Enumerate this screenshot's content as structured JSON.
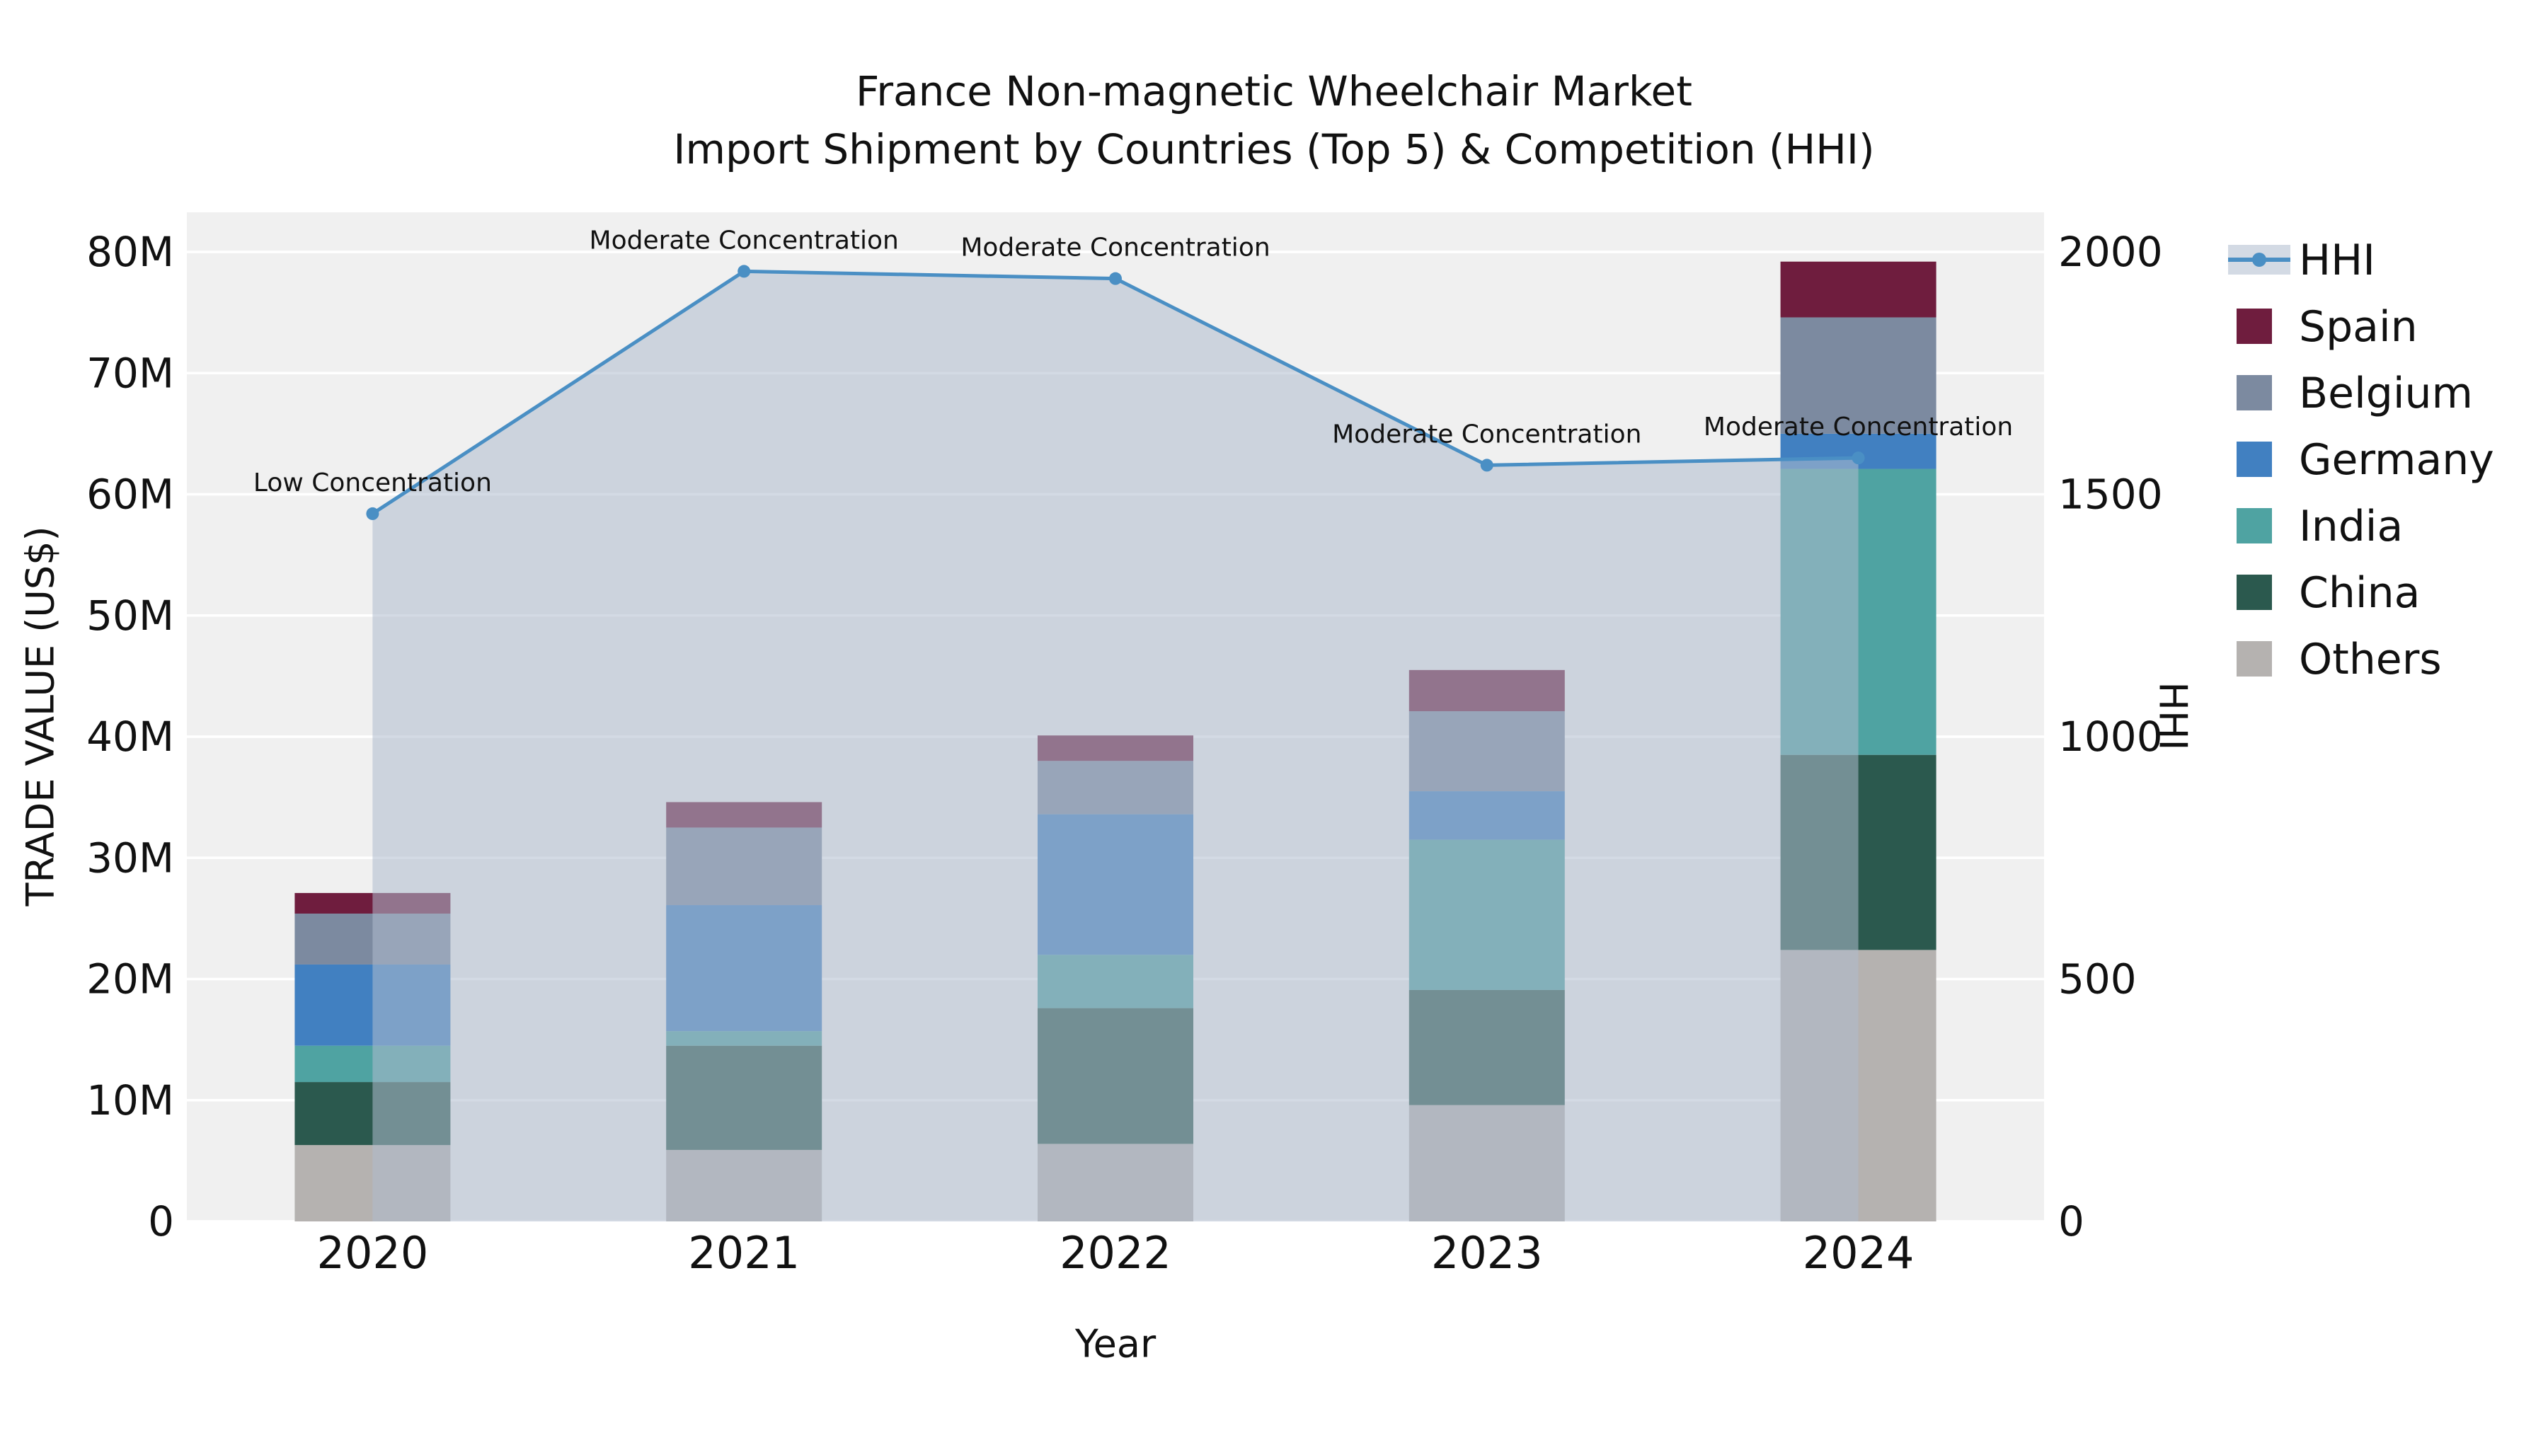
{
  "title": {
    "line1": "France Non-magnetic Wheelchair Market",
    "line2": "Import Shipment by Countries (Top 5) & Competition (HHI)"
  },
  "axes": {
    "y_left_title": "TRADE VALUE (US$)",
    "y_right_title": "HHI",
    "x_title": "Year"
  },
  "chart_data": {
    "type": "combo: stacked bar (trade value, left axis) + line with markers and area fill (HHI, right axis)",
    "categories": [
      "2020",
      "2021",
      "2022",
      "2023",
      "2024"
    ],
    "stack_order_bottom_to_top": [
      "Others",
      "China",
      "India",
      "Germany",
      "Belgium",
      "Spain"
    ],
    "series": [
      {
        "name": "Others",
        "color": "#b5b2b0",
        "values": [
          6.3,
          5.9,
          6.4,
          9.6,
          22.4
        ]
      },
      {
        "name": "China",
        "color": "#2b594e",
        "values": [
          5.2,
          8.6,
          11.2,
          9.5,
          16.1
        ]
      },
      {
        "name": "India",
        "color": "#4fa3a2",
        "values": [
          3.0,
          1.2,
          4.4,
          12.4,
          23.6
        ]
      },
      {
        "name": "Germany",
        "color": "#4180c1",
        "values": [
          6.7,
          10.4,
          11.6,
          4.0,
          2.9
        ]
      },
      {
        "name": "Belgium",
        "color": "#7c8aa0",
        "values": [
          4.2,
          6.4,
          4.4,
          6.6,
          9.6
        ]
      },
      {
        "name": "Spain",
        "color": "#6f1d3e",
        "values": [
          1.7,
          2.1,
          2.1,
          3.4,
          4.6
        ]
      }
    ],
    "bar_totals_millions": [
      27.1,
      34.6,
      40.1,
      45.5,
      79.2
    ],
    "line_series": {
      "name": "HHI",
      "color": "#4a8fc4",
      "fill_color": "#aebccd",
      "values": [
        1460,
        1960,
        1945,
        1560,
        1575
      ]
    },
    "annotations": [
      "Low Concentration",
      "Moderate Concentration",
      "Moderate Concentration",
      "Moderate Concentration",
      "Moderate Concentration"
    ],
    "y_left": {
      "label": "TRADE VALUE (US$)",
      "ticks": [
        "0",
        "10M",
        "20M",
        "30M",
        "40M",
        "50M",
        "60M",
        "70M",
        "80M"
      ],
      "tick_values": [
        0,
        10,
        20,
        30,
        40,
        50,
        60,
        70,
        80
      ],
      "max": 80
    },
    "y_right": {
      "label": "HHI",
      "ticks": [
        "0",
        "500",
        "1000",
        "1500",
        "2000"
      ],
      "tick_values": [
        0,
        500,
        1000,
        1500,
        2000
      ],
      "max": 2000
    },
    "x_label": "Year",
    "legend": [
      {
        "label": "HHI",
        "symbol": "line",
        "color": "#4a8fc4"
      },
      {
        "label": "Spain",
        "symbol": "square",
        "color": "#6f1d3e"
      },
      {
        "label": "Belgium",
        "symbol": "square",
        "color": "#7c8aa0"
      },
      {
        "label": "Germany",
        "symbol": "square",
        "color": "#4180c1"
      },
      {
        "label": "India",
        "symbol": "square",
        "color": "#4fa3a2"
      },
      {
        "label": "China",
        "symbol": "square",
        "color": "#2b594e"
      },
      {
        "label": "Others",
        "symbol": "square",
        "color": "#b5b2b0"
      }
    ],
    "plot_bg": "#f0f0f0",
    "grid_color": "#ffffff",
    "text_color": "#111111",
    "grid_on": true,
    "legend_position": "right-outside"
  }
}
